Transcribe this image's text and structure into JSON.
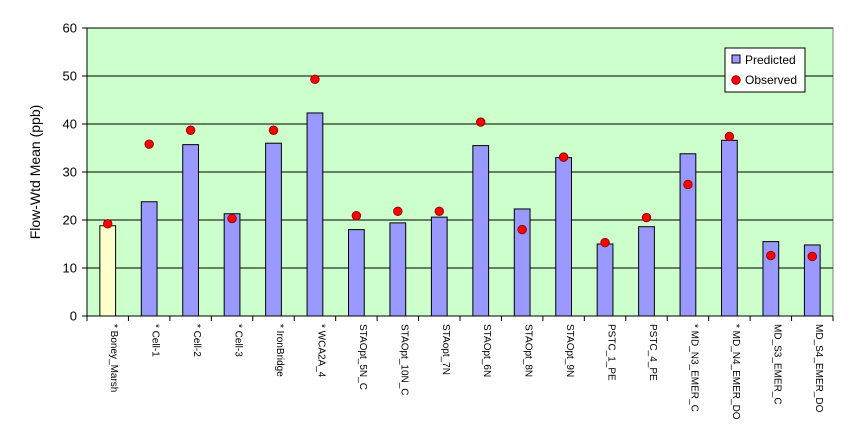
{
  "chart_data": {
    "type": "bar",
    "title": "",
    "xlabel": "",
    "ylabel": "Flow-Wtd Mean (ppb)",
    "ylim": [
      0,
      60
    ],
    "yticks": [
      0,
      10,
      20,
      30,
      40,
      50,
      60
    ],
    "grid": true,
    "legend_position": "top-right",
    "categories": [
      "* Boney_Marsh",
      "* Cell-1",
      "* Cell-2",
      "* Cell-3",
      "* IronBridge",
      "* WCA2A_4",
      "STAOpt_5N_C",
      "STAOpt_10N_C",
      "STAopt_7N",
      "STAOpt_6N",
      "STAOpt_8N",
      "STAOpt_9N",
      "PSTC_1_PE",
      "PSTC_4_PE",
      "* MD_N3_EMER_C",
      "* MD_N4_EMER_DO",
      "MD_S3_EMER_C",
      "MD_S4_EMER_DO"
    ],
    "series": [
      {
        "name": "Predicted",
        "kind": "bar",
        "color": "#9999ff",
        "highlight_color": "#ffffcc",
        "highlight_index": 0,
        "values": [
          18.8,
          23.8,
          35.7,
          21.3,
          36.0,
          42.3,
          18.0,
          19.4,
          20.6,
          35.5,
          22.3,
          33.0,
          15.0,
          18.6,
          33.8,
          36.6,
          15.5,
          14.8
        ]
      },
      {
        "name": "Observed",
        "kind": "marker",
        "color": "#ff0000",
        "values": [
          19.2,
          35.8,
          38.7,
          20.3,
          38.7,
          49.3,
          20.9,
          21.8,
          21.8,
          40.4,
          18.0,
          33.1,
          15.3,
          20.5,
          27.4,
          37.4,
          12.6,
          12.4
        ]
      }
    ],
    "plot_background": "#ccffcc"
  }
}
